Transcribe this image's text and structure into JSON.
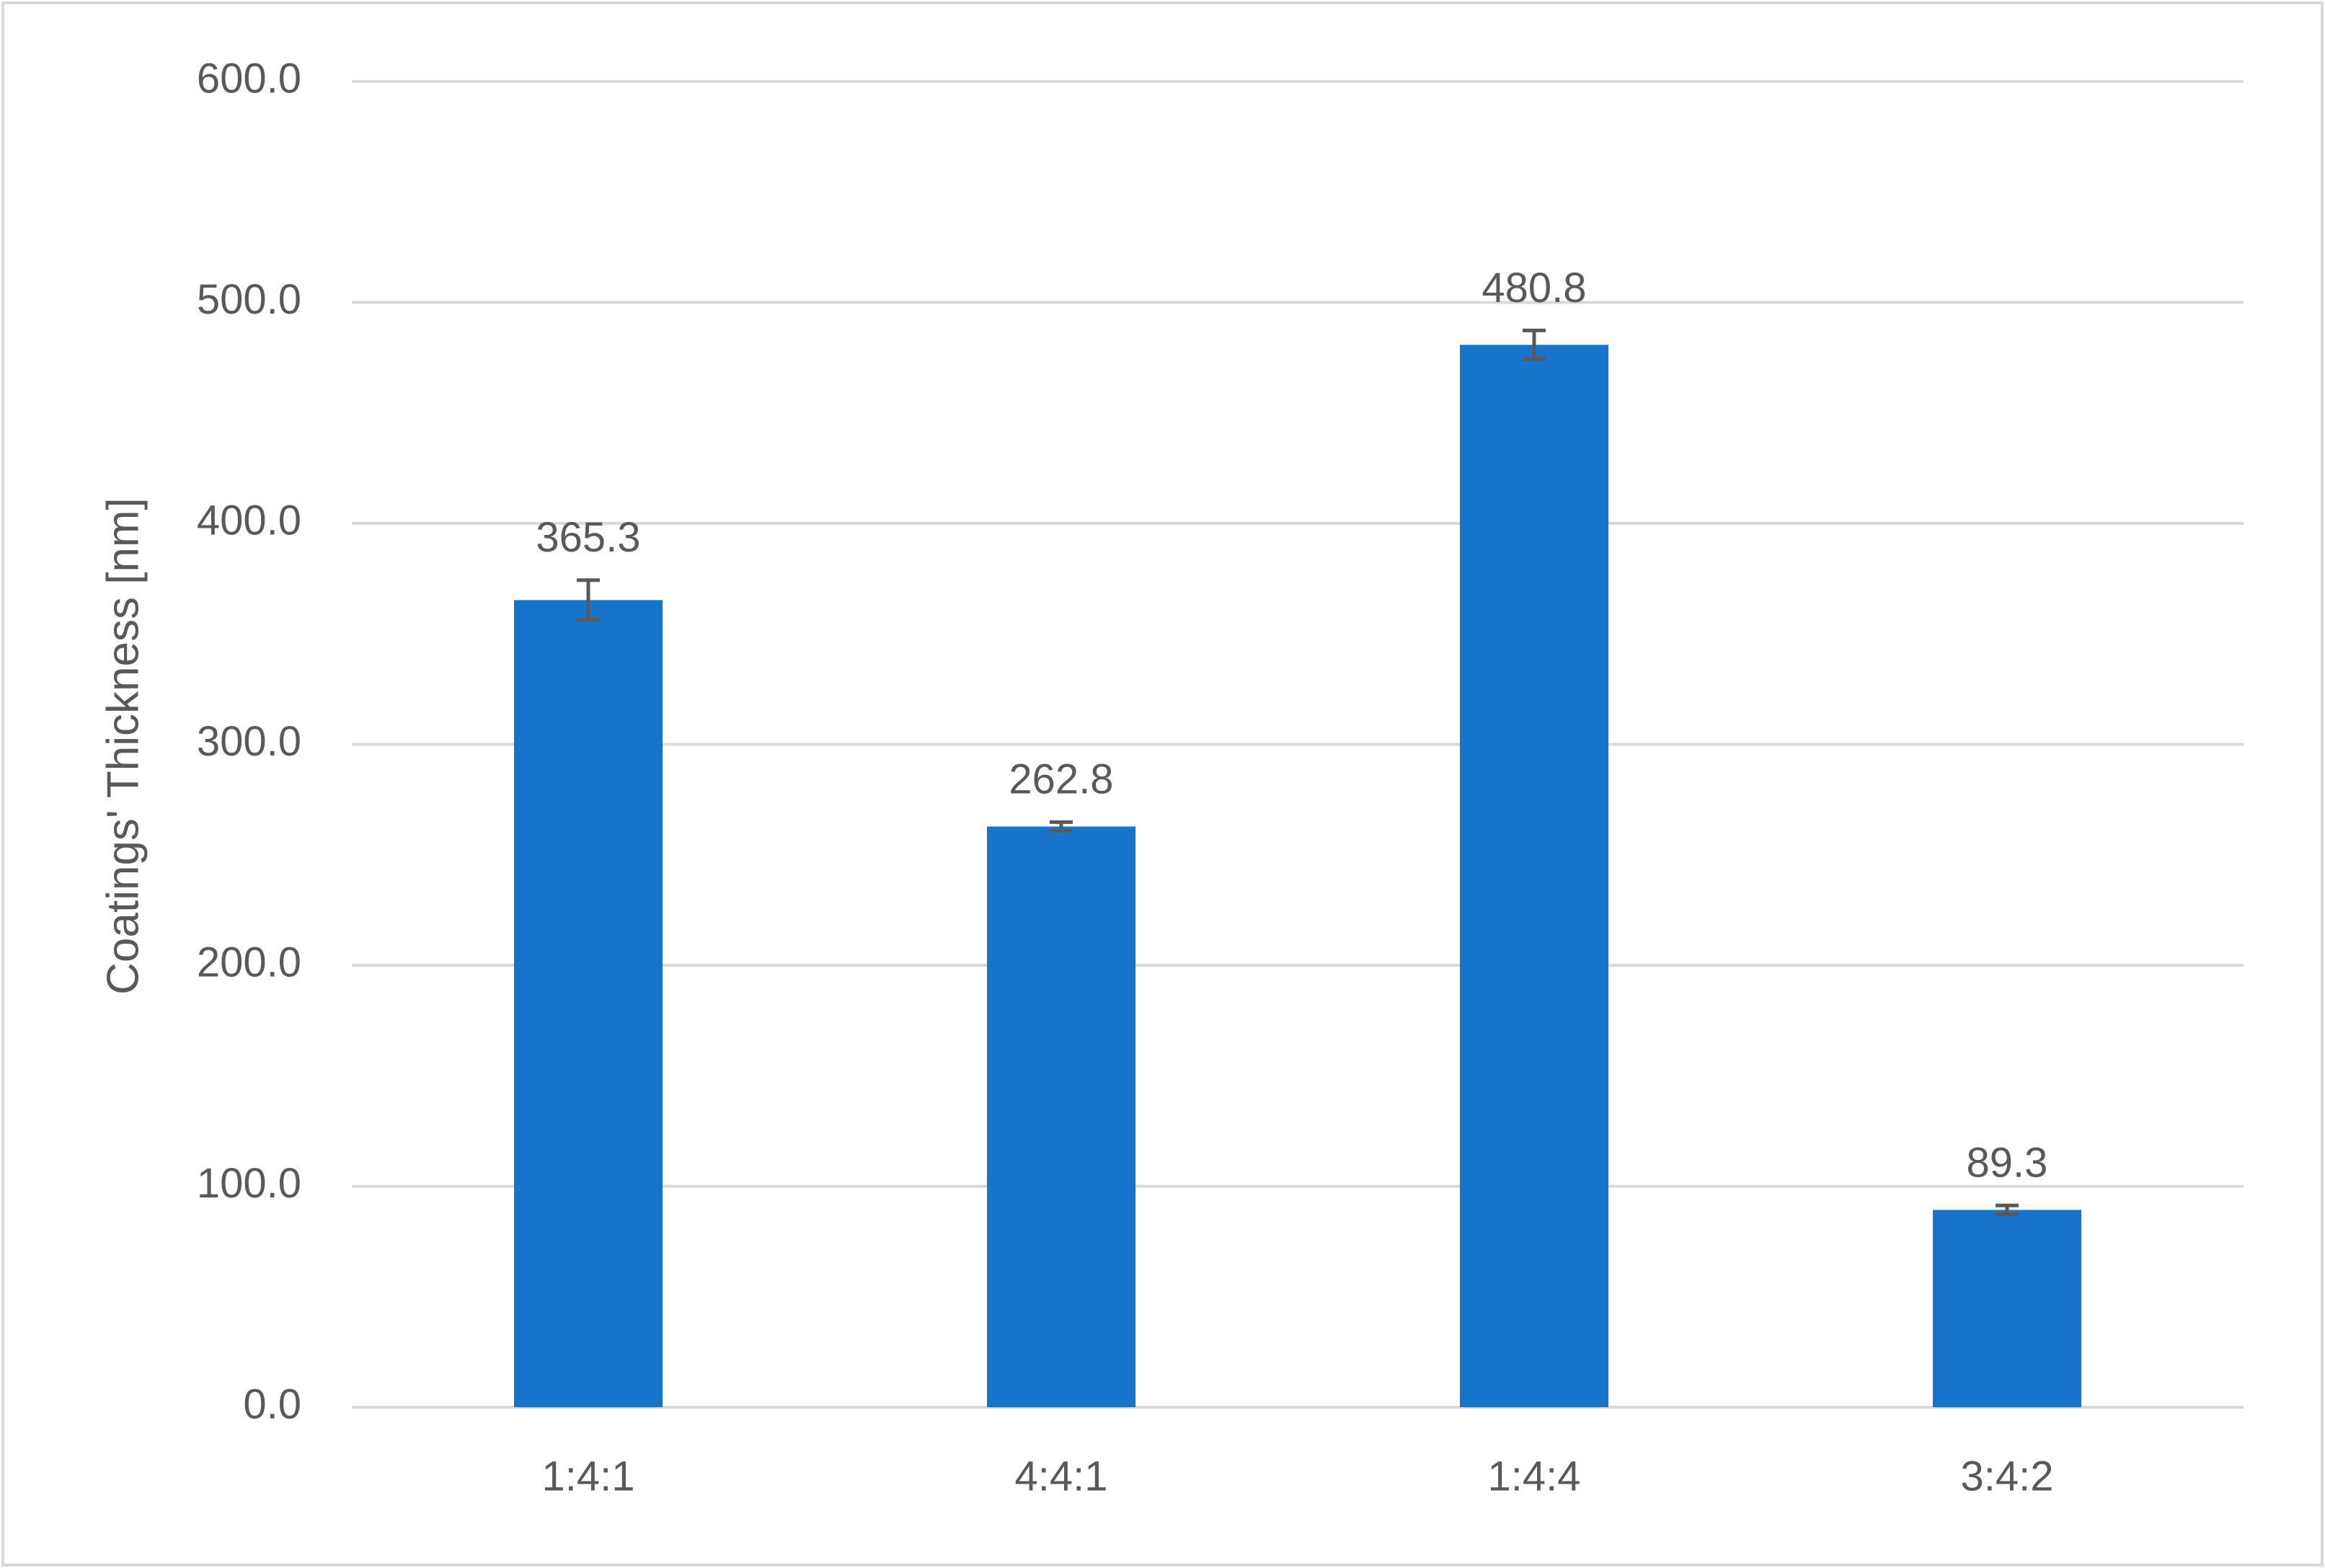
{
  "chart_data": {
    "type": "bar",
    "y_label": "Coatings' Thickness [nm]",
    "categories": [
      "1:4:1",
      "4:4:1",
      "1:4:4",
      "3:4:2"
    ],
    "values": [
      365.3,
      262.8,
      480.8,
      89.3
    ],
    "errors": [
      9,
      2,
      6.5,
      2
    ],
    "color": "#1874c9",
    "error_color": "#595959",
    "ylim": [
      0,
      600
    ],
    "yticks": [
      {
        "value": 0,
        "label": "0.0"
      },
      {
        "value": 100,
        "label": "100.0"
      },
      {
        "value": 200,
        "label": "200.0"
      },
      {
        "value": 300,
        "label": "300.0"
      },
      {
        "value": 400,
        "label": "400.0"
      },
      {
        "value": 500,
        "label": "500.0"
      },
      {
        "value": 600,
        "label": "600.0"
      }
    ],
    "grid": true
  }
}
